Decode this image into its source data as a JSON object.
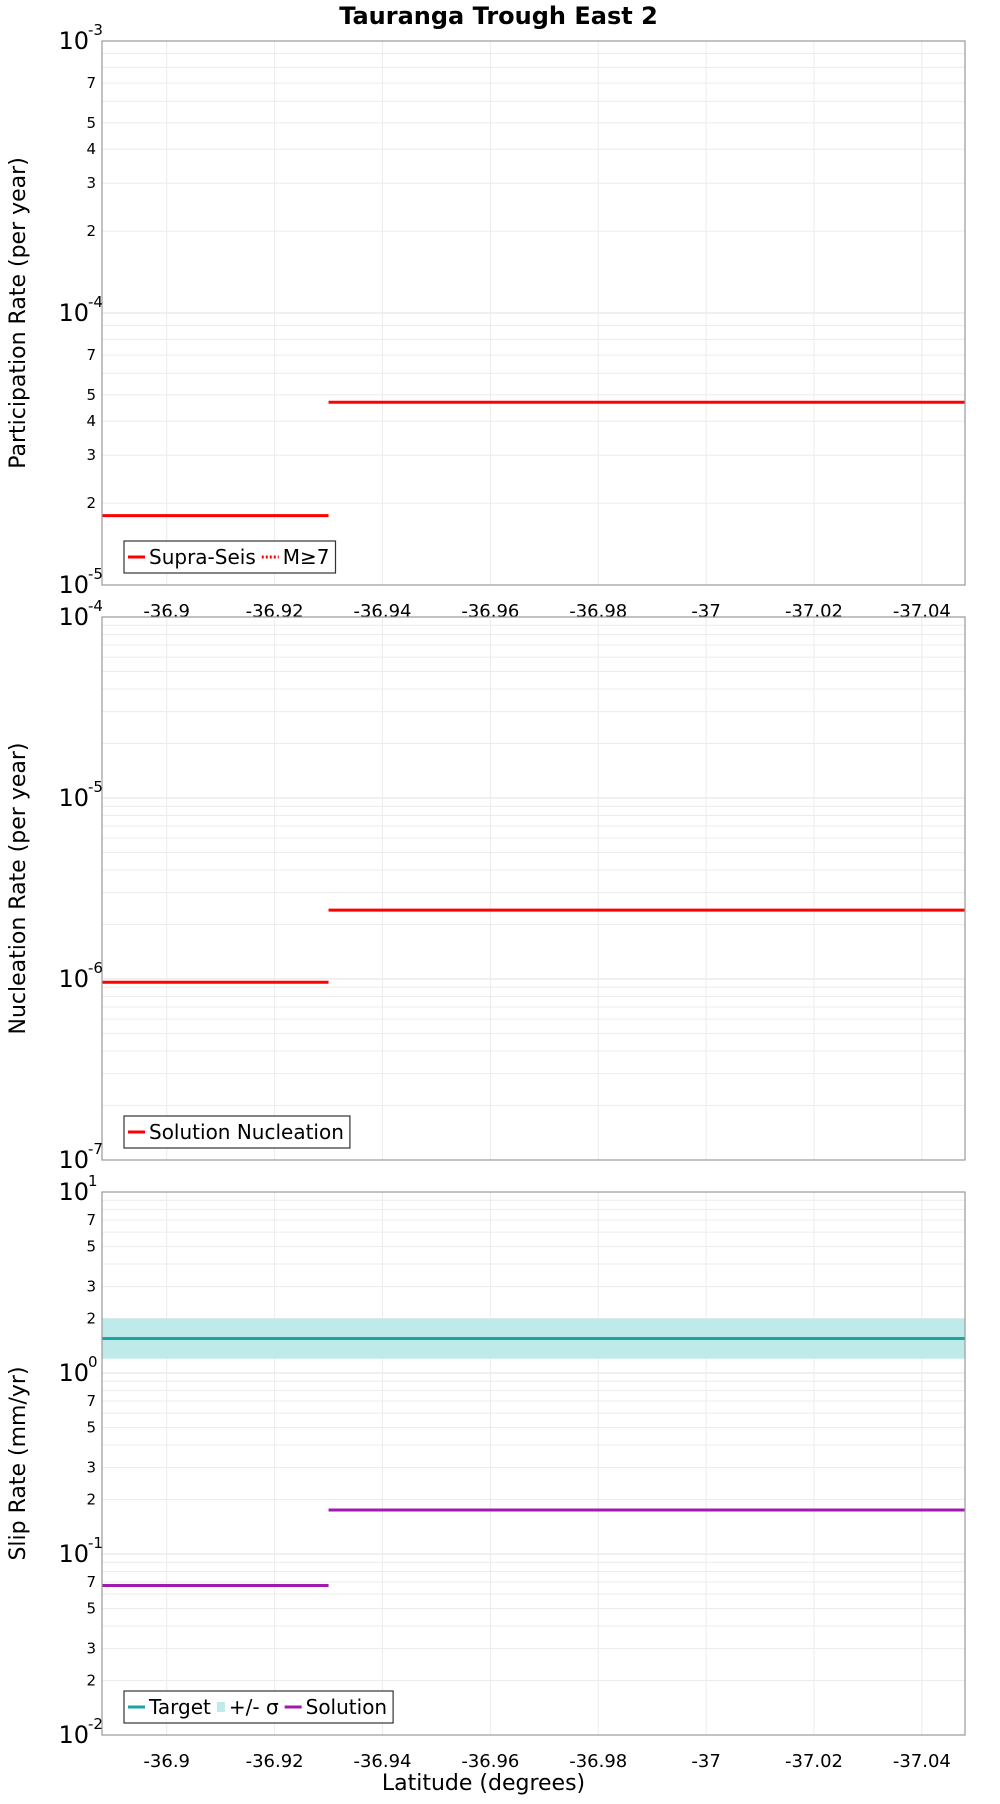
{
  "chart_data": [
    {
      "type": "line",
      "title": "Tauranga Trough East 2",
      "xlabel": "Latitude (degrees)",
      "ylabel": "Participation Rate (per year)",
      "yscale": "log",
      "ylim": [
        1e-05,
        0.001
      ],
      "xlim": [
        -36.888,
        -37.048
      ],
      "x_ticks": [
        -36.9,
        -36.92,
        -36.94,
        -36.96,
        -36.98,
        -37,
        -37.02,
        -37.04
      ],
      "x_tick_labels": [
        "-36.9",
        "-36.92",
        "-36.94",
        "-36.96",
        "-36.98",
        "-37",
        "-37.02",
        "-37.04"
      ],
      "y_major_ticks": [
        {
          "value": 0.001,
          "base": "10",
          "exp": "-3"
        },
        {
          "value": 0.0001,
          "base": "10",
          "exp": "-4"
        },
        {
          "value": 1e-05,
          "base": "10",
          "exp": "-5"
        }
      ],
      "y_minor_labels": [
        "2",
        "3",
        "4",
        "5",
        "7"
      ],
      "series": [
        {
          "name": "Supra-Seis",
          "color": "#ff0000",
          "style": "solid",
          "segments": [
            {
              "x": [
                -36.888,
                -36.93
              ],
              "y": 1.8e-05
            },
            {
              "x": [
                -36.93,
                -37.048
              ],
              "y": 4.7e-05
            }
          ]
        },
        {
          "name": "M≥7",
          "color": "#ff0000",
          "style": "dotted",
          "segments": []
        }
      ],
      "legend": [
        "Supra-Seis",
        "M≥7"
      ],
      "legend_position": "bottom-left"
    },
    {
      "type": "line",
      "xlabel": "",
      "ylabel": "Nucleation Rate (per year)",
      "yscale": "log",
      "ylim": [
        1e-07,
        0.0001
      ],
      "xlim": [
        -36.888,
        -37.048
      ],
      "x_ticks": [
        -36.9,
        -36.92,
        -36.94,
        -36.96,
        -36.98,
        -37,
        -37.02,
        -37.04
      ],
      "y_major_ticks": [
        {
          "value": 0.0001,
          "base": "10",
          "exp": "-4"
        },
        {
          "value": 1e-05,
          "base": "10",
          "exp": "-5"
        },
        {
          "value": 1e-06,
          "base": "10",
          "exp": "-6"
        },
        {
          "value": 1e-07,
          "base": "10",
          "exp": "-7"
        }
      ],
      "y_minor_labels": [],
      "series": [
        {
          "name": "Solution Nucleation",
          "color": "#ff0000",
          "style": "solid",
          "segments": [
            {
              "x": [
                -36.888,
                -36.93
              ],
              "y": 9.6e-07
            },
            {
              "x": [
                -36.93,
                -37.048
              ],
              "y": 2.4e-06
            }
          ]
        }
      ],
      "legend": [
        "Solution Nucleation"
      ],
      "legend_position": "bottom-left"
    },
    {
      "type": "line",
      "xlabel": "Latitude (degrees)",
      "ylabel": "Slip Rate (mm/yr)",
      "yscale": "log",
      "ylim": [
        0.01,
        10
      ],
      "xlim": [
        -36.888,
        -37.048
      ],
      "x_ticks": [
        -36.9,
        -36.92,
        -36.94,
        -36.96,
        -36.98,
        -37,
        -37.02,
        -37.04
      ],
      "x_tick_labels": [
        "-36.9",
        "-36.92",
        "-36.94",
        "-36.96",
        "-36.98",
        "-37",
        "-37.02",
        "-37.04"
      ],
      "y_major_ticks": [
        {
          "value": 10,
          "base": "10",
          "exp": "1"
        },
        {
          "value": 1,
          "base": "10",
          "exp": "0"
        },
        {
          "value": 0.1,
          "base": "10",
          "exp": "-1"
        },
        {
          "value": 0.01,
          "base": "10",
          "exp": "-2"
        }
      ],
      "y_minor_labels": [
        "2",
        "3",
        "5",
        "7"
      ],
      "band": {
        "name": "+/- σ",
        "color": "#bfeaea",
        "low": 1.2,
        "high": 2.0
      },
      "series": [
        {
          "name": "Target",
          "color": "#1aa39f",
          "style": "solid",
          "segments": [
            {
              "x": [
                -36.888,
                -37.048
              ],
              "y": 1.55
            }
          ]
        },
        {
          "name": "Solution",
          "color": "#a01aaf",
          "style": "solid",
          "segments": [
            {
              "x": [
                -36.888,
                -36.93
              ],
              "y": 0.067
            },
            {
              "x": [
                -36.93,
                -37.048
              ],
              "y": 0.175
            }
          ]
        }
      ],
      "legend": [
        "Target",
        "+/- σ",
        "Solution"
      ],
      "legend_position": "bottom-left"
    }
  ]
}
